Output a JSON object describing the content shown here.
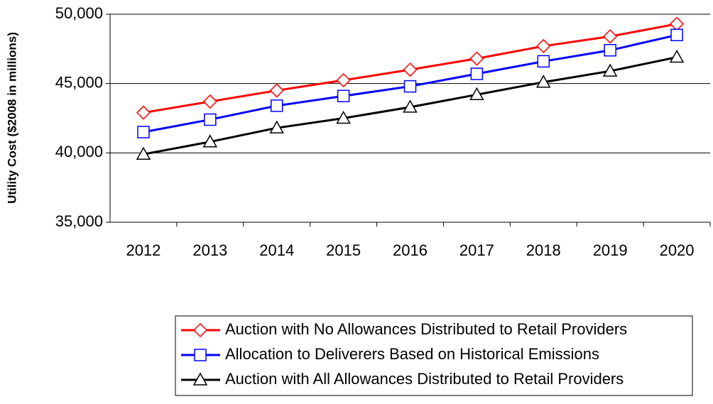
{
  "chart_data": {
    "type": "line",
    "y_label": "Utility Cost ($2008 in millions)",
    "categories": [
      "2012",
      "2013",
      "2014",
      "2015",
      "2016",
      "2017",
      "2018",
      "2019",
      "2020"
    ],
    "series": [
      {
        "name": "Auction with No Allowances Distributed to Retail Providers",
        "color": "#ff0000",
        "marker": "diamond",
        "values": [
          42900,
          43700,
          44500,
          45240,
          46000,
          46800,
          47700,
          48400,
          49300
        ]
      },
      {
        "name": "Allocation to Deliverers Based on Historical Emissions",
        "color": "#0000ff",
        "marker": "square",
        "values": [
          41500,
          42400,
          43400,
          44100,
          44800,
          45700,
          46600,
          47400,
          48500
        ]
      },
      {
        "name": "Auction with All Allowances Distributed to Retail Providers",
        "color": "#000000",
        "marker": "triangle",
        "values": [
          39900,
          40800,
          41800,
          42500,
          43300,
          44200,
          45100,
          45900,
          46900
        ]
      }
    ],
    "ylim": [
      35000,
      50000
    ],
    "yticks": [
      {
        "value": 35000,
        "label": "35,000"
      },
      {
        "value": 40000,
        "label": "40,000"
      },
      {
        "value": 45000,
        "label": "45,000"
      },
      {
        "value": 50000,
        "label": "50,000"
      }
    ],
    "grid": true
  }
}
